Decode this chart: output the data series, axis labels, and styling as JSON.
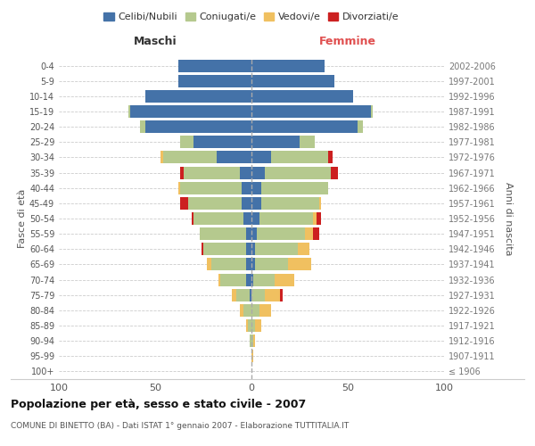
{
  "age_groups": [
    "100+",
    "95-99",
    "90-94",
    "85-89",
    "80-84",
    "75-79",
    "70-74",
    "65-69",
    "60-64",
    "55-59",
    "50-54",
    "45-49",
    "40-44",
    "35-39",
    "30-34",
    "25-29",
    "20-24",
    "15-19",
    "10-14",
    "5-9",
    "0-4"
  ],
  "year_labels": [
    "≤ 1906",
    "1907-1911",
    "1912-1916",
    "1917-1921",
    "1922-1926",
    "1927-1931",
    "1932-1936",
    "1937-1941",
    "1942-1946",
    "1947-1951",
    "1952-1956",
    "1957-1961",
    "1962-1966",
    "1967-1971",
    "1972-1976",
    "1977-1981",
    "1982-1986",
    "1987-1991",
    "1992-1996",
    "1997-2001",
    "2002-2006"
  ],
  "maschi": {
    "celibi": [
      0,
      0,
      0,
      0,
      0,
      1,
      3,
      3,
      3,
      3,
      4,
      5,
      5,
      6,
      18,
      30,
      55,
      63,
      55,
      38,
      38
    ],
    "coniugati": [
      0,
      0,
      1,
      2,
      4,
      7,
      13,
      18,
      22,
      24,
      26,
      28,
      32,
      29,
      28,
      7,
      3,
      1,
      0,
      0,
      0
    ],
    "vedovi": [
      0,
      0,
      0,
      1,
      2,
      2,
      1,
      2,
      0,
      0,
      0,
      0,
      1,
      0,
      1,
      0,
      0,
      0,
      0,
      0,
      0
    ],
    "divorziati": [
      0,
      0,
      0,
      0,
      0,
      0,
      0,
      0,
      1,
      0,
      1,
      4,
      0,
      2,
      0,
      0,
      0,
      0,
      0,
      0,
      0
    ]
  },
  "femmine": {
    "nubili": [
      0,
      0,
      0,
      0,
      0,
      0,
      1,
      2,
      2,
      3,
      4,
      5,
      5,
      7,
      10,
      25,
      55,
      62,
      53,
      43,
      38
    ],
    "coniugate": [
      0,
      0,
      1,
      2,
      4,
      7,
      11,
      17,
      22,
      25,
      28,
      30,
      35,
      34,
      30,
      8,
      3,
      1,
      0,
      0,
      0
    ],
    "vedove": [
      0,
      1,
      1,
      3,
      6,
      8,
      10,
      12,
      6,
      4,
      2,
      1,
      0,
      0,
      0,
      0,
      0,
      0,
      0,
      0,
      0
    ],
    "divorziate": [
      0,
      0,
      0,
      0,
      0,
      1,
      0,
      0,
      0,
      3,
      2,
      0,
      0,
      4,
      2,
      0,
      0,
      0,
      0,
      0,
      0
    ]
  },
  "colors": {
    "celibi": "#4472a8",
    "coniugati": "#b5c98e",
    "vedovi": "#f0c060",
    "divorziati": "#cc2020"
  },
  "xlim": 100,
  "title": "Popolazione per età, sesso e stato civile - 2007",
  "subtitle": "COMUNE DI BINETTO (BA) - Dati ISTAT 1° gennaio 2007 - Elaborazione TUTTITALIA.IT",
  "ylabel_left": "Fasce di età",
  "ylabel_right": "Anni di nascita",
  "xlabel_maschi": "Maschi",
  "xlabel_femmine": "Femmine",
  "legend_labels": [
    "Celibi/Nubili",
    "Coniugati/e",
    "Vedovi/e",
    "Divorziati/e"
  ],
  "fig_width": 6.0,
  "fig_height": 5.0,
  "dpi": 100
}
